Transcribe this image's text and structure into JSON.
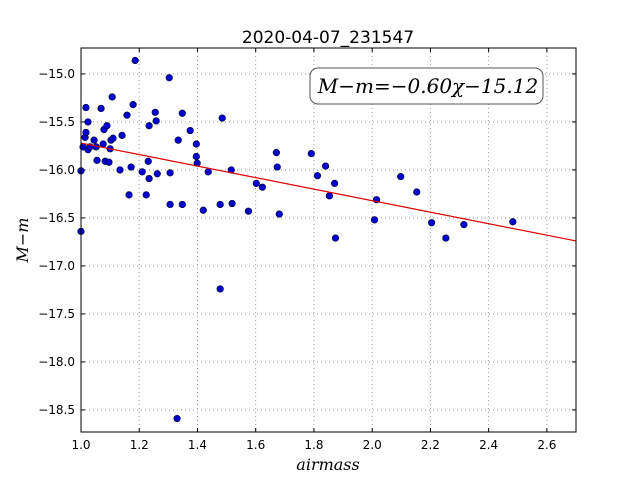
{
  "chart_data": {
    "type": "scatter",
    "title": "2020-04-07_231547",
    "xlabel": "airmass",
    "ylabel": "M−m",
    "annotation": "M−m=−0.60χ−15.12",
    "xlim": [
      1.0,
      2.7
    ],
    "ylim": [
      -18.73,
      -14.73
    ],
    "invert_y": true,
    "grid": true,
    "xticks": [
      {
        "value": 1.0,
        "label": "1.0"
      },
      1.2,
      1.4,
      1.6,
      1.8,
      {
        "value": 2.0,
        "label": "2.0"
      },
      2.2,
      2.4,
      2.6
    ],
    "yticks": [
      {
        "value": -15.0,
        "label": "−15.0"
      },
      {
        "value": -15.5,
        "label": "−15.5"
      },
      {
        "value": -16.0,
        "label": "−16.0"
      },
      {
        "value": -16.5,
        "label": "−16.5"
      },
      {
        "value": -17.0,
        "label": "−17.0"
      },
      {
        "value": -17.5,
        "label": "−17.5"
      },
      {
        "value": -18.0,
        "label": "−18.0"
      },
      {
        "value": -18.5,
        "label": "−18.5"
      }
    ],
    "points": {
      "color": "#0000cc",
      "x": [
        1.0,
        1.0,
        1.007,
        1.014,
        1.017,
        1.017,
        1.024,
        1.024,
        1.031,
        1.045,
        1.052,
        1.055,
        1.069,
        1.076,
        1.079,
        1.083,
        1.089,
        1.096,
        1.1,
        1.103,
        1.107,
        1.11,
        1.134,
        1.141,
        1.158,
        1.165,
        1.172,
        1.179,
        1.186,
        1.21,
        1.224,
        1.231,
        1.234,
        1.234,
        1.255,
        1.258,
        1.262,
        1.303,
        1.306,
        1.306,
        1.334,
        1.348,
        1.348,
        1.375,
        1.396,
        1.396,
        1.399,
        1.42,
        1.437,
        1.478,
        1.485,
        1.478,
        1.516,
        1.519,
        1.575,
        1.602,
        1.623,
        1.671,
        1.674,
        1.681,
        1.791,
        1.812,
        1.84,
        1.853,
        1.871,
        1.874,
        2.008,
        2.015,
        2.098,
        2.153,
        2.204,
        2.253,
        2.315,
        2.483,
        1.33
      ],
      "values": [
        -16.01,
        -16.64,
        -15.76,
        -15.66,
        -15.61,
        -15.35,
        -15.5,
        -15.79,
        -15.76,
        -15.69,
        -15.76,
        -15.9,
        -15.36,
        -15.73,
        -15.58,
        -15.91,
        -15.54,
        -15.92,
        -15.78,
        -15.69,
        -15.24,
        -15.67,
        -16.0,
        -15.64,
        -15.43,
        -16.26,
        -15.97,
        -15.32,
        -14.86,
        -16.02,
        -16.26,
        -15.91,
        -15.54,
        -16.09,
        -15.4,
        -15.49,
        -16.04,
        -15.04,
        -16.03,
        -16.36,
        -15.69,
        -15.41,
        -16.36,
        -15.59,
        -15.73,
        -15.86,
        -15.93,
        -16.42,
        -16.02,
        -16.36,
        -15.46,
        -17.24,
        -16.0,
        -16.35,
        -16.43,
        -16.14,
        -16.18,
        -15.82,
        -15.97,
        -16.46,
        -15.83,
        -16.06,
        -15.96,
        -16.27,
        -16.14,
        -16.71,
        -16.52,
        -16.31,
        -16.07,
        -16.23,
        -16.55,
        -16.71,
        -16.57,
        -16.54,
        -18.59
      ]
    },
    "fit": {
      "color": "#dd0000",
      "x": [
        1.0,
        2.7
      ],
      "values": [
        -15.72,
        -16.74
      ]
    }
  }
}
